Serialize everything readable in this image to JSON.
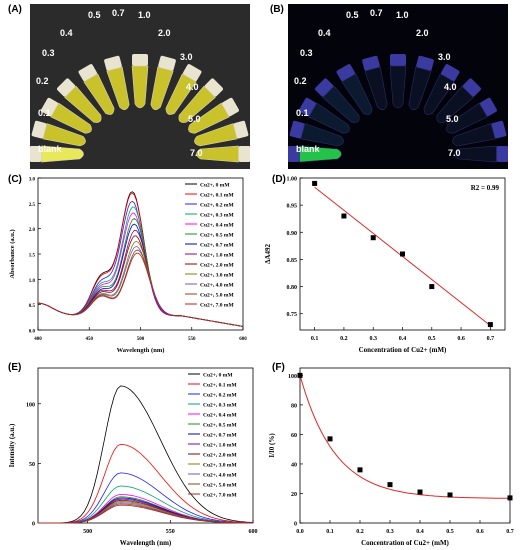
{
  "panels": {
    "a": "(A)",
    "b": "(B)",
    "c": "(C)",
    "d": "(D)",
    "e": "(E)",
    "f": "(F)"
  },
  "photos": {
    "a_labels": [
      "0.5",
      "0.7",
      "1.0",
      "0.4",
      "2.0",
      "0.3",
      "3.0",
      "0.2",
      "4.0",
      "0.1",
      "5.0",
      "blank",
      "7.0"
    ],
    "b_labels": [
      "0.5",
      "0.7",
      "1.0",
      "0.4",
      "2.0",
      "0.3",
      "3.0",
      "0.2",
      "4.0",
      "0.1",
      "5.0",
      "blank",
      "7.0"
    ]
  },
  "colors": {
    "series": [
      "#000000",
      "#ff0000",
      "#1f1fff",
      "#00a86b",
      "#ff00ff",
      "#1a8f1a",
      "#0000c8",
      "#8b008b",
      "#8b0000",
      "#808000",
      "#6a5acd",
      "#8b4513",
      "#b22222"
    ],
    "fit": "#e32626"
  },
  "chart_data": [
    {
      "id": "c",
      "type": "line",
      "xlabel": "Wavelength (nm)",
      "ylabel": "Absorbance (a.u.)",
      "xlim": [
        400,
        600
      ],
      "ylim": [
        0,
        3.0
      ],
      "xticks": [
        "400",
        "450",
        "500",
        "550",
        "600"
      ],
      "yticks": [
        "0.0",
        "0.5",
        "1.0",
        "1.5",
        "2.0",
        "2.5",
        "3.0"
      ],
      "series_labels": [
        "Cu2+, 0 mM",
        "Cu2+, 0.1 mM",
        "Cu2+, 0.2 mM",
        "Cu2+, 0.3 mM",
        "Cu2+, 0.4 mM",
        "Cu2+, 0.5 mM",
        "Cu2+, 0.7 mM",
        "Cu2+, 1.0 mM",
        "Cu2+, 2.0 mM",
        "Cu2+, 3.0 mM",
        "Cu2+, 4.0 mM",
        "Cu2+, 5.0 mM",
        "Cu2+, 7.0 mM"
      ],
      "legend_position": "top-right",
      "peak_wavelength": [
        492,
        492,
        492,
        493,
        493,
        494,
        494,
        495,
        495,
        496,
        496,
        497,
        497
      ],
      "peak_absorbance": [
        2.73,
        2.7,
        2.54,
        2.43,
        2.31,
        2.2,
        2.09,
        1.97,
        1.86,
        1.75,
        1.65,
        1.58,
        1.52
      ],
      "shoulder_absorbance": [
        1.65,
        1.6,
        1.45,
        1.37,
        1.3,
        1.25,
        1.18,
        1.15,
        1.1,
        1.05,
        1.02,
        1.0,
        0.97
      ],
      "baseline": 0.28
    },
    {
      "id": "d",
      "type": "scatter",
      "xlabel": "Concentration of Cu2+ (mM)",
      "ylabel": "ΔA492",
      "xlim": [
        0.05,
        0.75
      ],
      "ylim": [
        0.72,
        1.0
      ],
      "xticks": [
        "0.1",
        "0.2",
        "0.3",
        "0.4",
        "0.5",
        "0.6",
        "0.7"
      ],
      "yticks": [
        "0.75",
        "0.80",
        "0.85",
        "0.90",
        "0.95",
        "1.00"
      ],
      "x": [
        0.1,
        0.2,
        0.3,
        0.4,
        0.5,
        0.7
      ],
      "y": [
        0.99,
        0.93,
        0.89,
        0.86,
        0.8,
        0.73
      ],
      "fit": {
        "x": [
          0.1,
          0.7
        ],
        "y": [
          0.983,
          0.728
        ]
      },
      "annotation": "R2 = 0.99"
    },
    {
      "id": "e",
      "type": "line",
      "xlabel": "Wavelength (nm)",
      "ylabel": "Intensity (a.u.)",
      "xlim": [
        470,
        600
      ],
      "ylim": [
        0,
        130
      ],
      "xticks": [
        "500",
        "550",
        "600"
      ],
      "yticks": [
        "0",
        "50",
        "100"
      ],
      "series_labels": [
        "Cu2+, 0 mM",
        "Cu2+, 0.1 mM",
        "Cu2+, 0.2 mM",
        "Cu2+, 0.3 mM",
        "Cu2+, 0.4 mM",
        "Cu2+, 0.5 mM",
        "Cu2+, 0.7 mM",
        "Cu2+, 1.0 mM",
        "Cu2+, 2.0 mM",
        "Cu2+, 3.0 mM",
        "Cu2+, 4.0 mM",
        "Cu2+, 5.0 mM",
        "Cu2+, 7.0 mM"
      ],
      "legend_position": "top-right",
      "peak_wavelength": 520,
      "peak_intensity": [
        115,
        66,
        42,
        31,
        24,
        22,
        21,
        20,
        19,
        18,
        17,
        16,
        15
      ]
    },
    {
      "id": "f",
      "type": "scatter",
      "xlabel": "Concentration of Cu2+ (mM)",
      "ylabel": "I/I0 (%)",
      "xlim": [
        0,
        0.7
      ],
      "ylim": [
        0,
        105
      ],
      "xticks": [
        "0.0",
        "0.1",
        "0.2",
        "0.3",
        "0.4",
        "0.5",
        "0.6",
        "0.7"
      ],
      "yticks": [
        "0",
        "20",
        "40",
        "60",
        "80",
        "100"
      ],
      "x": [
        0.0,
        0.1,
        0.2,
        0.3,
        0.4,
        0.5,
        0.7
      ],
      "y": [
        100,
        57,
        36,
        26,
        21,
        19,
        17
      ],
      "fit": {
        "y0": 16.5,
        "A": 83.5,
        "k": 8.6
      }
    }
  ]
}
